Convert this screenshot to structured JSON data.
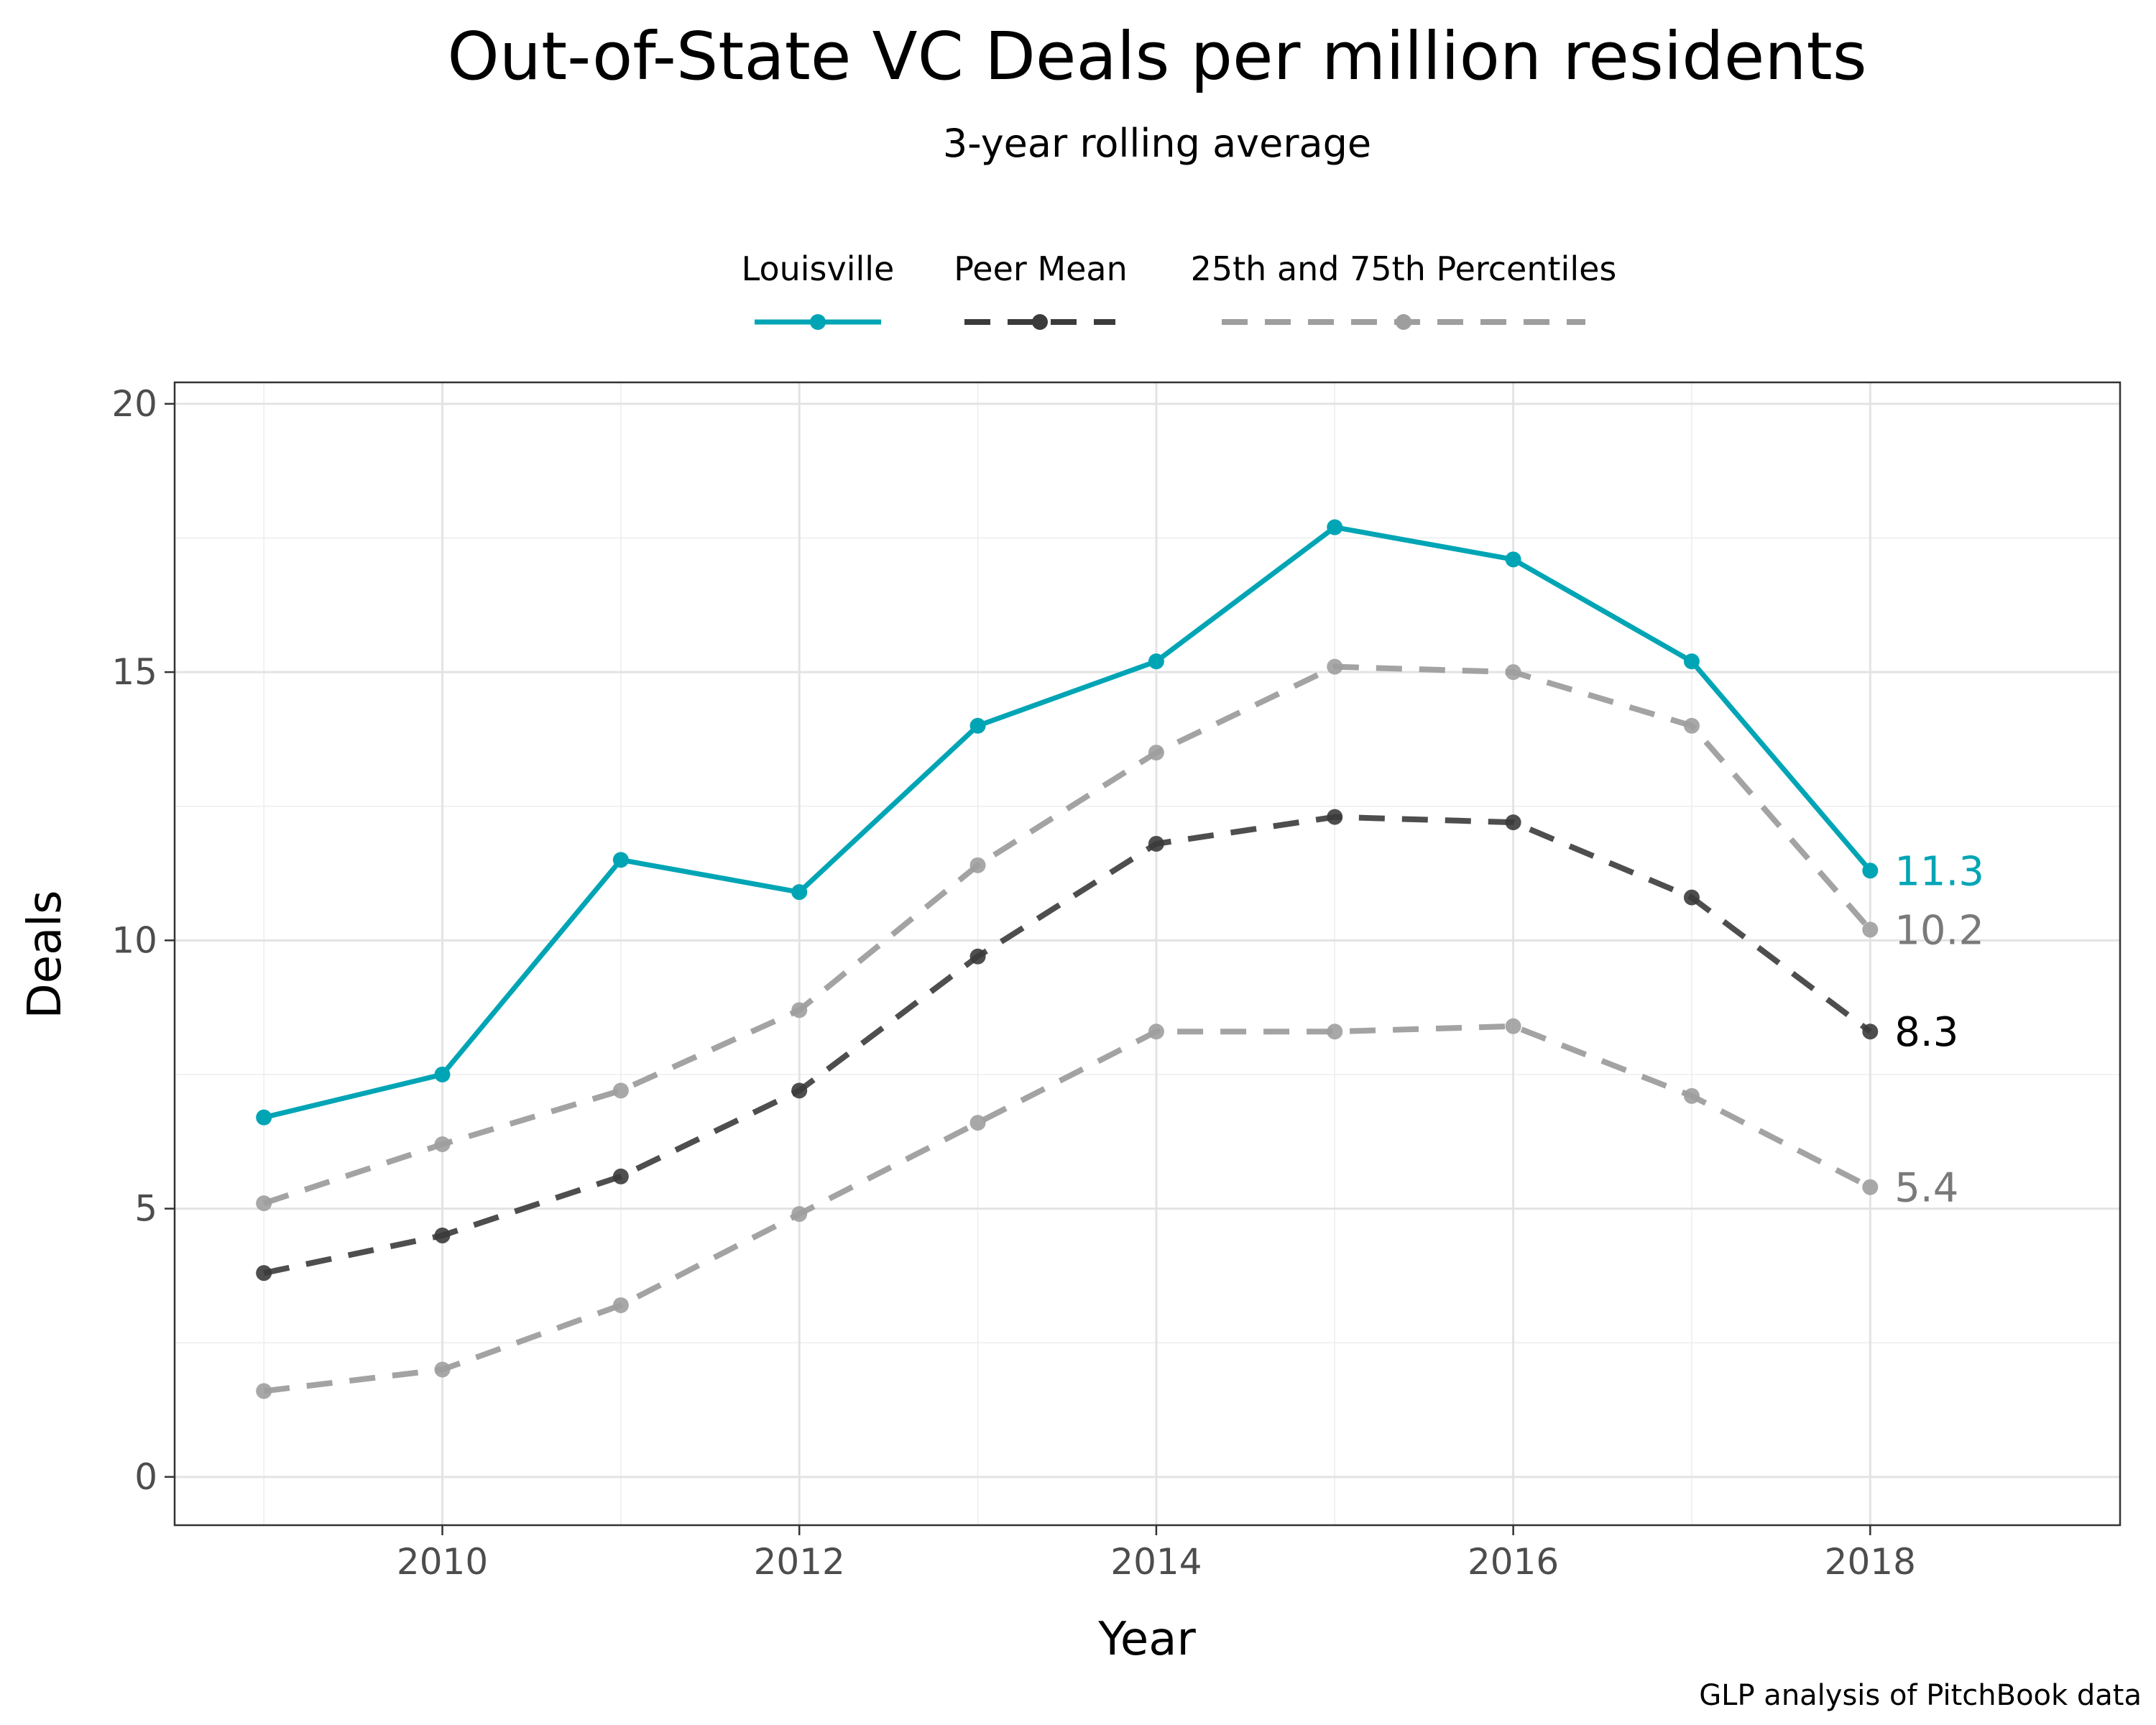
{
  "chart_data": {
    "type": "line",
    "title": "Out-of-State VC Deals per million residents",
    "subtitle": "3-year rolling average",
    "xlabel": "Year",
    "ylabel": "Deals",
    "caption": "GLP analysis of PitchBook data",
    "x": [
      2009,
      2010,
      2011,
      2012,
      2013,
      2014,
      2015,
      2016,
      2017,
      2018
    ],
    "xlim": [
      2008.5,
      2019.4
    ],
    "ylim": [
      -0.9,
      20.4
    ],
    "x_ticks": [
      2010,
      2012,
      2014,
      2016,
      2018
    ],
    "y_ticks": [
      0,
      5,
      10,
      15,
      20
    ],
    "grid": true,
    "legend_position": "top",
    "legend": [
      {
        "label": "Louisville",
        "color": "#00a5b5",
        "style": "solid"
      },
      {
        "label": "Peer Mean",
        "color": "#3b3b3b",
        "style": "dashed"
      },
      {
        "label": "25th and 75th Percentiles",
        "color": "#9e9e9e",
        "style": "dashed"
      }
    ],
    "series": [
      {
        "name": "Louisville",
        "key": "louisville",
        "color": "#00a5b5",
        "style": "solid",
        "values": [
          6.7,
          7.5,
          11.5,
          10.9,
          14.0,
          15.2,
          17.7,
          17.1,
          15.2,
          11.3
        ],
        "end_label": "11.3"
      },
      {
        "key": "percentile_75",
        "color": "#9e9e9e",
        "style": "dashed",
        "values": [
          5.1,
          6.2,
          7.2,
          8.7,
          11.4,
          13.5,
          15.1,
          15.0,
          14.0,
          10.2
        ],
        "end_label": "10.2"
      },
      {
        "name": "Peer Mean",
        "key": "peer_mean",
        "color": "#3b3b3b",
        "style": "dashed",
        "values": [
          3.8,
          4.5,
          5.6,
          7.2,
          9.7,
          11.8,
          12.3,
          12.2,
          10.8,
          8.3
        ],
        "end_label": "8.3"
      },
      {
        "key": "percentile_25",
        "color": "#9e9e9e",
        "style": "dashed",
        "values": [
          1.6,
          2.0,
          3.2,
          4.9,
          6.6,
          8.3,
          8.3,
          8.4,
          7.1,
          5.4
        ],
        "end_label": "5.4"
      }
    ]
  }
}
